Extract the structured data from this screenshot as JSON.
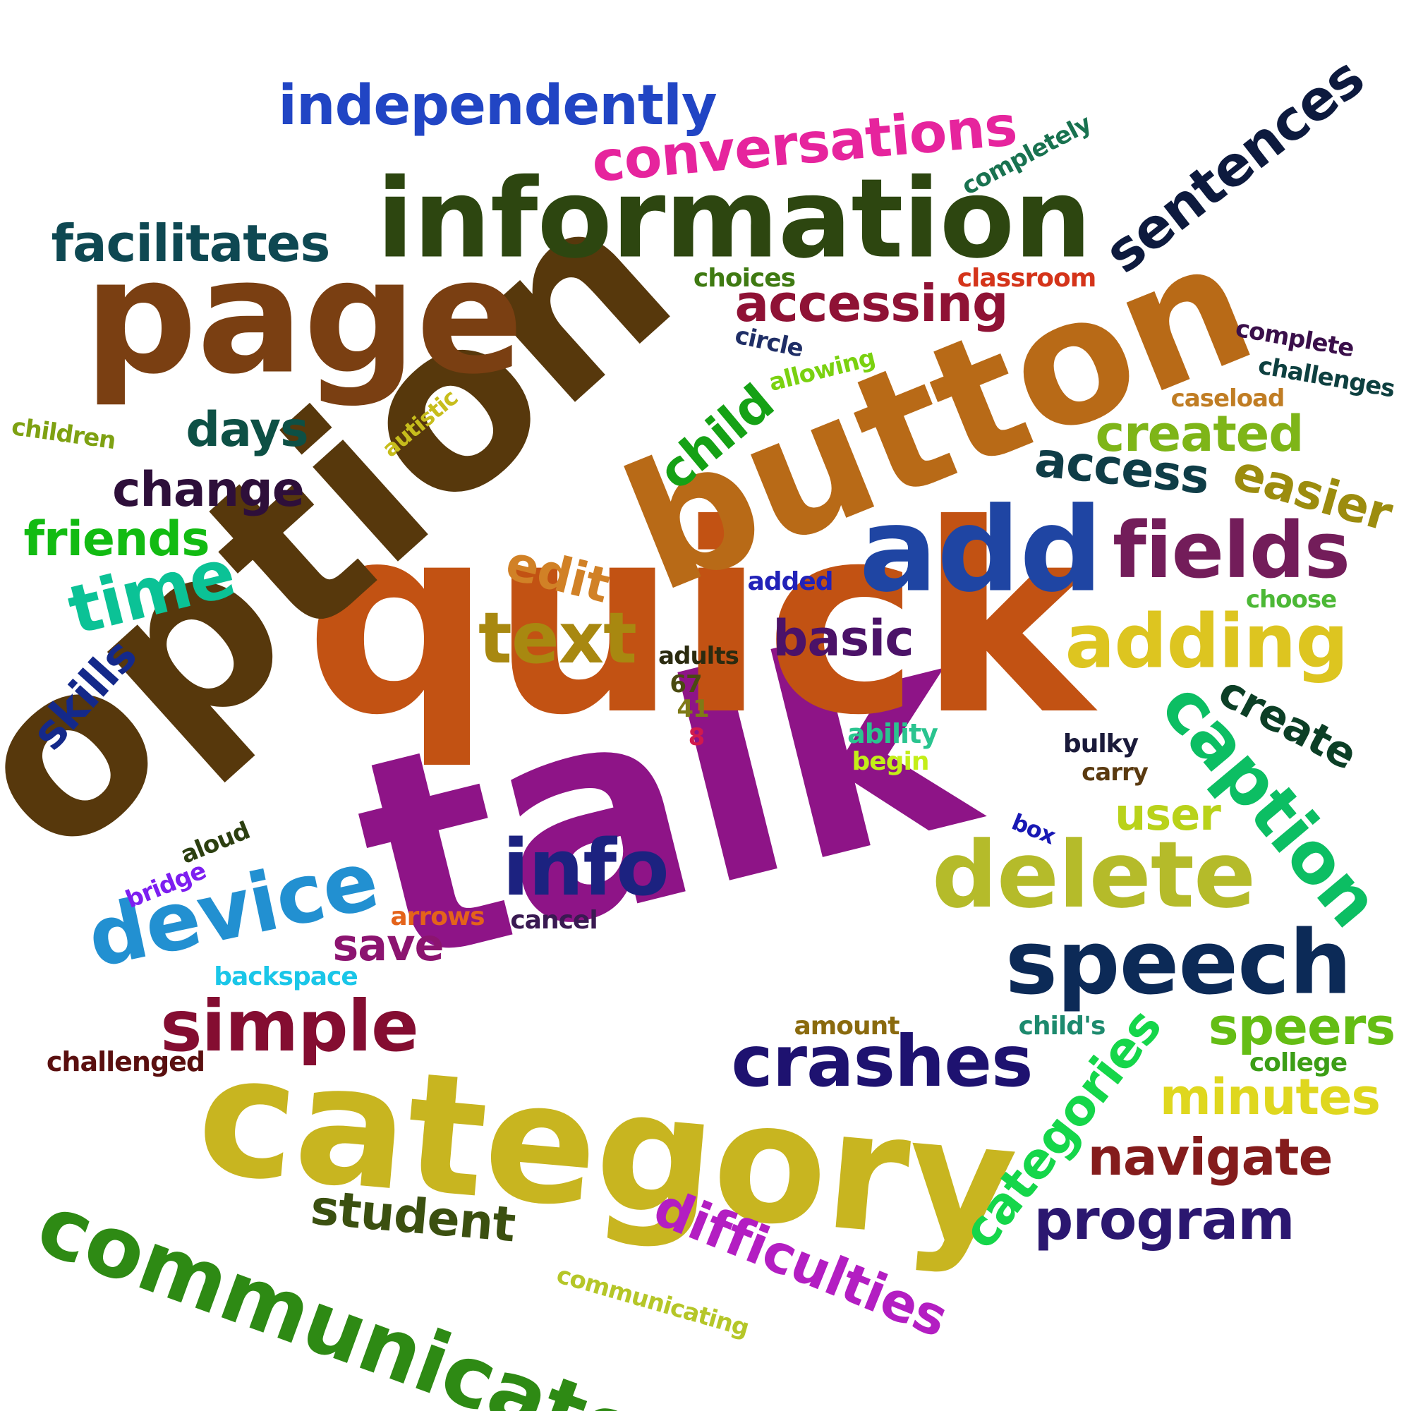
{
  "words": [
    {
      "text": "talk",
      "color": "#8e1487"
    },
    {
      "text": "quick",
      "color": "#c25213"
    },
    {
      "text": "option",
      "color": "#57380c"
    },
    {
      "text": "category",
      "color": "#c8b520"
    },
    {
      "text": "button",
      "color": "#b86a17"
    },
    {
      "text": "page",
      "color": "#7a3f12"
    },
    {
      "text": "information",
      "color": "#2d4610"
    },
    {
      "text": "add",
      "color": "#1f45a3"
    },
    {
      "text": "communicate",
      "color": "#2e8a14"
    },
    {
      "text": "delete",
      "color": "#b5bb2a"
    },
    {
      "text": "speech",
      "color": "#0c2a57"
    },
    {
      "text": "device",
      "color": "#2290d1"
    },
    {
      "text": "fields",
      "color": "#731d5a"
    },
    {
      "text": "adding",
      "color": "#ddc520"
    },
    {
      "text": "caption",
      "color": "#0cbe63"
    },
    {
      "text": "info",
      "color": "#1c2280"
    },
    {
      "text": "crashes",
      "color": "#1e1270"
    },
    {
      "text": "simple",
      "color": "#840d31"
    },
    {
      "text": "difficulties",
      "color": "#b31ec2"
    },
    {
      "text": "text",
      "color": "#a88810"
    },
    {
      "text": "time",
      "color": "#0bc296"
    },
    {
      "text": "sentences",
      "color": "#0d1a3e"
    },
    {
      "text": "conversations",
      "color": "#e6249d"
    },
    {
      "text": "independently",
      "color": "#2145c4"
    },
    {
      "text": "facilitates",
      "color": "#0e4852"
    },
    {
      "text": "accessing",
      "color": "#8f1235"
    },
    {
      "text": "program",
      "color": "#2b1770"
    },
    {
      "text": "navigate",
      "color": "#841c1c"
    },
    {
      "text": "categories",
      "color": "#15d64a"
    },
    {
      "text": "student",
      "color": "#3b5010"
    },
    {
      "text": "speers",
      "color": "#64bd14"
    },
    {
      "text": "minutes",
      "color": "#dfd71e"
    },
    {
      "text": "created",
      "color": "#7eb518"
    },
    {
      "text": "access",
      "color": "#0f3d47"
    },
    {
      "text": "easier",
      "color": "#9c8c0e"
    },
    {
      "text": "change",
      "color": "#2e0f3a"
    },
    {
      "text": "days",
      "color": "#0d5045"
    },
    {
      "text": "friends",
      "color": "#12bb12"
    },
    {
      "text": "basic",
      "color": "#4b1268"
    },
    {
      "text": "edit",
      "color": "#d18126"
    },
    {
      "text": "child",
      "color": "#15a115"
    },
    {
      "text": "skills",
      "color": "#14298a"
    },
    {
      "text": "create",
      "color": "#0c3f26"
    },
    {
      "text": "user",
      "color": "#b9d21a"
    },
    {
      "text": "save",
      "color": "#8c1470"
    },
    {
      "text": "choices",
      "color": "#3f7a12"
    },
    {
      "text": "classroom",
      "color": "#d4341a"
    },
    {
      "text": "completely",
      "color": "#197250"
    },
    {
      "text": "complete",
      "color": "#3a0f4a"
    },
    {
      "text": "challenges",
      "color": "#0e4040"
    },
    {
      "text": "caseload",
      "color": "#c07d24"
    },
    {
      "text": "circle",
      "color": "#1f2e66"
    },
    {
      "text": "allowing",
      "color": "#7ad110"
    },
    {
      "text": "autistic",
      "color": "#c7bd1c"
    },
    {
      "text": "children",
      "color": "#7ea112"
    },
    {
      "text": "added",
      "color": "#2222b8"
    },
    {
      "text": "choose",
      "color": "#4cb836"
    },
    {
      "text": "adults",
      "color": "#2b2b10"
    },
    {
      "text": "67",
      "color": "#4a4a10"
    },
    {
      "text": "41",
      "color": "#7f7a16"
    },
    {
      "text": "8",
      "color": "#d11a4d"
    },
    {
      "text": "ability",
      "color": "#2ac48f"
    },
    {
      "text": "begin",
      "color": "#c3ee18"
    },
    {
      "text": "bulky",
      "color": "#1a1a3a"
    },
    {
      "text": "carry",
      "color": "#5a3a10"
    },
    {
      "text": "box",
      "color": "#1818b4"
    },
    {
      "text": "aloud",
      "color": "#2c3f10"
    },
    {
      "text": "bridge",
      "color": "#7d1ef0"
    },
    {
      "text": "arrows",
      "color": "#e4631a"
    },
    {
      "text": "cancel",
      "color": "#3a1a52"
    },
    {
      "text": "backspace",
      "color": "#1ac6e8"
    },
    {
      "text": "amount",
      "color": "#8a6a0e"
    },
    {
      "text": "child's",
      "color": "#1d8a6e"
    },
    {
      "text": "college",
      "color": "#3c9e16"
    },
    {
      "text": "challenged",
      "color": "#5a0f0f"
    },
    {
      "text": "communicating",
      "color": "#b5c628"
    }
  ]
}
